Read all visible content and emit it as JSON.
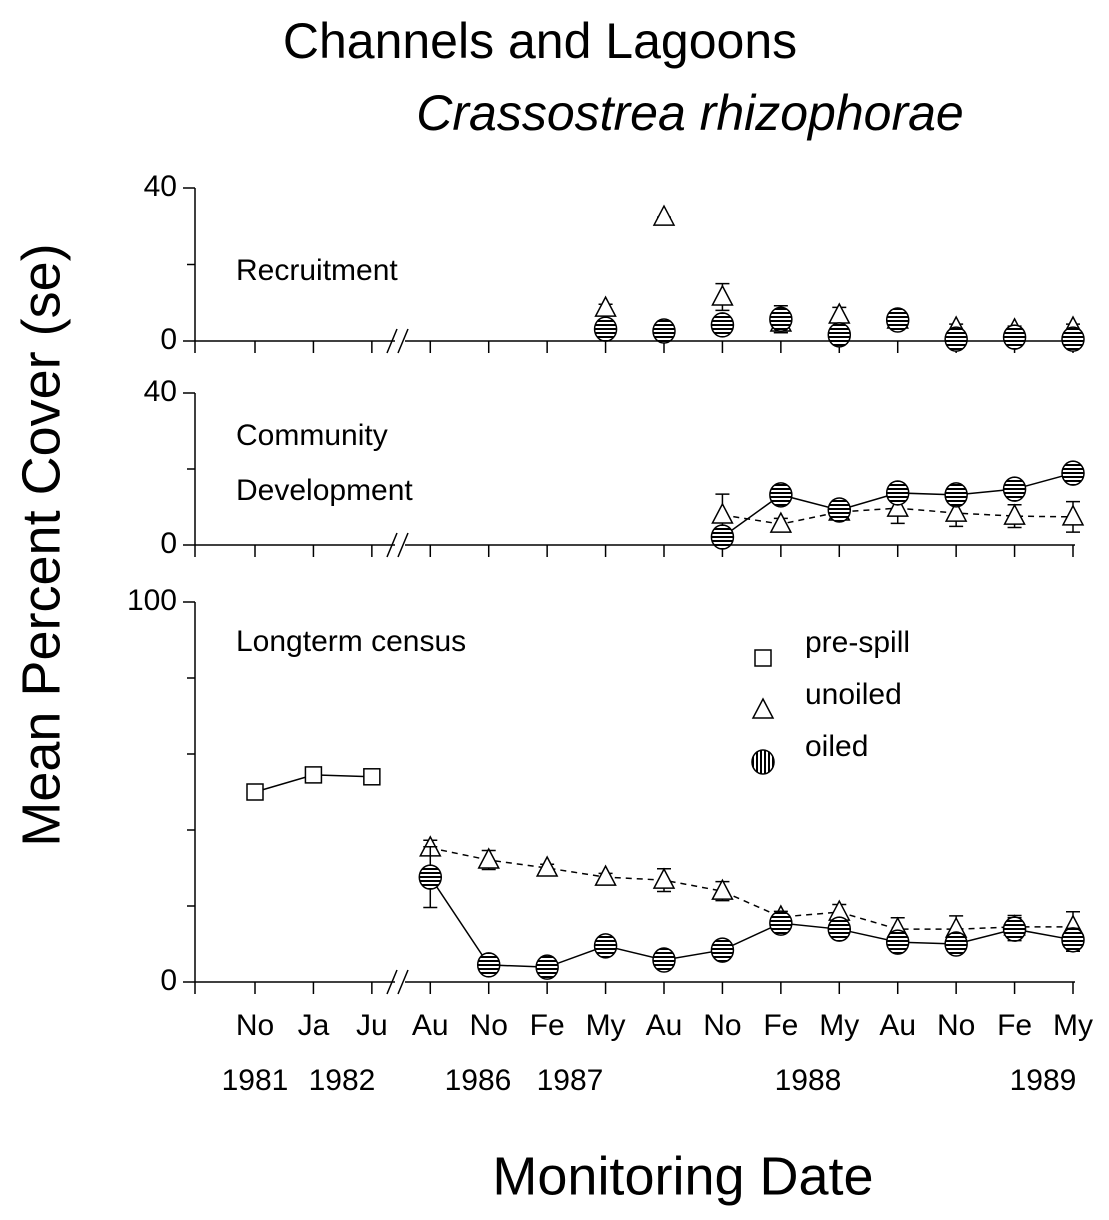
{
  "title": "Channels and Lagoons",
  "subtitle": "Crassostrea rhizophorae",
  "y_label": "Mean Percent Cover (se)",
  "x_axis": {
    "label": "Monitoring Date",
    "categories": [
      "No",
      "Ja",
      "Ju",
      "Au",
      "No",
      "Fe",
      "My",
      "Au",
      "No",
      "Fe",
      "My",
      "Au",
      "No",
      "Fe",
      "My"
    ],
    "years": [
      "1981",
      "1982",
      "1986",
      "1987",
      "1988",
      "1989"
    ]
  },
  "chart_data": [
    {
      "type": "scatter",
      "title": "Recruitment",
      "ylim": [
        0,
        40
      ],
      "yticks": [
        0,
        40
      ],
      "minor_yticks": [
        20
      ],
      "legend": false,
      "series": [
        {
          "name": "unoiled",
          "color": "#000",
          "marker": "triangle",
          "line": false,
          "dashed": true,
          "values": [
            null,
            null,
            null,
            null,
            null,
            null,
            8.6,
            32.4,
            11.5,
            4.7,
            6.8,
            5.5,
            3.4,
            2.9,
            3.4
          ],
          "errors": [
            null,
            null,
            null,
            null,
            null,
            null,
            1,
            0,
            3.5,
            2.5,
            2,
            1.5,
            1,
            1,
            1
          ]
        },
        {
          "name": "oiled",
          "color": "#000",
          "marker": "circle",
          "line": false,
          "dashed": false,
          "values": [
            null,
            null,
            null,
            null,
            null,
            null,
            3.1,
            2.6,
            4.2,
            5.7,
            1.6,
            5.5,
            0.5,
            1,
            0.5
          ],
          "errors": [
            null,
            null,
            null,
            null,
            null,
            null,
            2,
            1,
            1.5,
            3.5,
            1.5,
            2.5,
            1,
            2,
            1.5
          ]
        }
      ]
    },
    {
      "type": "line",
      "title": [
        "Community",
        "Development"
      ],
      "ylim": [
        0,
        40
      ],
      "yticks": [
        0,
        40
      ],
      "minor_yticks": [
        20
      ],
      "legend": false,
      "series": [
        {
          "name": "unoiled",
          "color": "#000",
          "marker": "triangle",
          "line": true,
          "dashed": true,
          "values": [
            null,
            null,
            null,
            null,
            null,
            null,
            null,
            null,
            7.9,
            5.5,
            8.7,
            9.7,
            8.4,
            7.6,
            7.4
          ],
          "errors": [
            null,
            null,
            null,
            null,
            null,
            null,
            null,
            null,
            5.5,
            1.5,
            1.5,
            4,
            3.5,
            3,
            4
          ]
        },
        {
          "name": "oiled",
          "color": "#000",
          "marker": "circle",
          "line": true,
          "dashed": false,
          "values": [
            null,
            null,
            null,
            null,
            null,
            null,
            null,
            null,
            2.1,
            13.2,
            9.2,
            13.7,
            13.2,
            14.7,
            18.9
          ],
          "errors": [
            null,
            null,
            null,
            null,
            null,
            null,
            null,
            null,
            1.5,
            1.5,
            1,
            1,
            1,
            1,
            1
          ]
        }
      ]
    },
    {
      "type": "line",
      "title": "Longterm census",
      "ylim": [
        0,
        100
      ],
      "yticks": [
        0,
        100
      ],
      "minor_yticks": [
        20,
        40,
        60,
        80
      ],
      "legend": true,
      "series": [
        {
          "name": "pre-spill",
          "color": "#000",
          "marker": "square",
          "line": true,
          "dashed": false,
          "values": [
            50,
            54.5,
            54,
            null,
            null,
            null,
            null,
            null,
            null,
            null,
            null,
            null,
            null,
            null,
            null
          ],
          "errors": [
            1,
            1,
            1,
            null,
            null,
            null,
            null,
            null,
            null,
            null,
            null,
            null,
            null,
            null,
            null
          ]
        },
        {
          "name": "unoiled",
          "color": "#000",
          "marker": "triangle",
          "line": true,
          "dashed": true,
          "values": [
            null,
            null,
            null,
            35.3,
            32.1,
            30,
            27.6,
            26.8,
            23.9,
            17.1,
            18.4,
            13.9,
            13.9,
            14.5,
            14.5
          ],
          "errors": [
            null,
            null,
            null,
            2,
            2.5,
            1,
            1,
            3,
            2.5,
            1.5,
            2,
            3,
            3.5,
            3,
            4
          ]
        },
        {
          "name": "oiled",
          "color": "#000",
          "marker": "circle",
          "line": true,
          "dashed": false,
          "values": [
            null,
            null,
            null,
            27.6,
            4.5,
            3.9,
            9.5,
            5.8,
            8.4,
            15.5,
            13.9,
            10.5,
            10,
            13.9,
            11.1
          ],
          "errors": [
            null,
            null,
            null,
            8,
            1,
            1,
            1,
            1,
            1,
            1.5,
            1.5,
            2,
            1.5,
            3,
            3
          ]
        }
      ]
    }
  ]
}
